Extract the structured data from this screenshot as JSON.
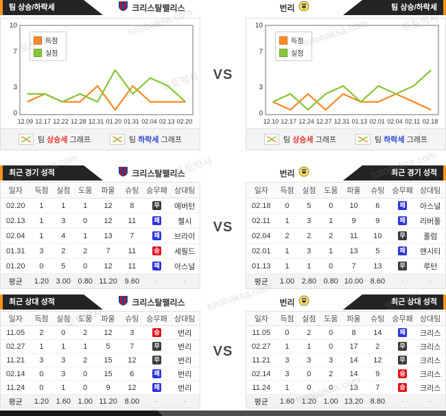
{
  "vs_label": "VS",
  "watermark": {
    "brand": "토토박사",
    "domain": "totobaksa.com"
  },
  "teams": {
    "left": {
      "name": "크리스탈팰리스"
    },
    "right": {
      "name": "번리"
    }
  },
  "result_colors": {
    "승": "#e3131c",
    "무": "#3a3a3a",
    "패": "#2b35d7"
  },
  "table_columns": [
    "일자",
    "득점",
    "실점",
    "도움",
    "파울",
    "슈팅",
    "승무패",
    "상대팀"
  ],
  "column_keys": [
    "date",
    "goals-for",
    "goals-against",
    "assists",
    "fouls",
    "shots",
    "result",
    "opponent"
  ],
  "sections": {
    "trend": {
      "title": "팀 상승/하락세",
      "links": {
        "up": {
          "prefix": "팀",
          "word": "상승세",
          "suffix": "그래프"
        },
        "down": {
          "prefix": "팀",
          "word": "하락세",
          "suffix": "그래프"
        }
      }
    },
    "recent": {
      "title": "최근 경기 성적",
      "left": {
        "rows": [
          [
            "02.20",
            "1",
            "1",
            "1",
            "12",
            "8",
            "무",
            "에버턴"
          ],
          [
            "02.13",
            "1",
            "3",
            "0",
            "12",
            "11",
            "패",
            "첼시"
          ],
          [
            "02.04",
            "1",
            "4",
            "1",
            "13",
            "7",
            "패",
            "브라이"
          ],
          [
            "01.31",
            "3",
            "2",
            "2",
            "7",
            "11",
            "승",
            "세필드"
          ],
          [
            "01.20",
            "0",
            "5",
            "0",
            "12",
            "11",
            "패",
            "아스널"
          ]
        ],
        "avg": [
          "평균",
          "1.20",
          "3.00",
          "0.80",
          "11.20",
          "9.60",
          "·",
          "·"
        ]
      },
      "right": {
        "rows": [
          [
            "02.18",
            "0",
            "5",
            "0",
            "10",
            "6",
            "패",
            "아스널"
          ],
          [
            "02.11",
            "1",
            "3",
            "1",
            "9",
            "9",
            "패",
            "리버풀"
          ],
          [
            "02.04",
            "2",
            "2",
            "2",
            "11",
            "10",
            "무",
            "풀럼"
          ],
          [
            "02.01",
            "1",
            "3",
            "1",
            "13",
            "5",
            "패",
            "맨시티"
          ],
          [
            "01.13",
            "1",
            "1",
            "0",
            "7",
            "13",
            "무",
            "루턴"
          ]
        ],
        "avg": [
          "평균",
          "1.00",
          "2.80",
          "0.80",
          "10.00",
          "8.60",
          "·",
          "·"
        ]
      }
    },
    "h2h": {
      "title": "최근 상대 성적",
      "left": {
        "rows": [
          [
            "11.05",
            "2",
            "0",
            "2",
            "12",
            "3",
            "승",
            "번리"
          ],
          [
            "02.27",
            "1",
            "1",
            "1",
            "5",
            "7",
            "무",
            "번리"
          ],
          [
            "11.21",
            "3",
            "3",
            "2",
            "15",
            "12",
            "무",
            "번리"
          ],
          [
            "02.14",
            "0",
            "3",
            "0",
            "15",
            "6",
            "패",
            "번리"
          ],
          [
            "11.24",
            "0",
            "1",
            "0",
            "9",
            "12",
            "패",
            "번리"
          ]
        ],
        "avg": [
          "평균",
          "1.20",
          "1.60",
          "1.00",
          "11.20",
          "8.00",
          "·",
          "·"
        ]
      },
      "right": {
        "rows": [
          [
            "11.05",
            "0",
            "2",
            "0",
            "8",
            "14",
            "패",
            "크리스"
          ],
          [
            "02.27",
            "1",
            "1",
            "0",
            "17",
            "2",
            "무",
            "크리스"
          ],
          [
            "11.21",
            "3",
            "3",
            "3",
            "14",
            "12",
            "무",
            "크리스"
          ],
          [
            "02.14",
            "3",
            "0",
            "2",
            "14",
            "9",
            "승",
            "크리스"
          ],
          [
            "11.24",
            "1",
            "0",
            "0",
            "13",
            "7",
            "승",
            "크리스"
          ]
        ],
        "avg": [
          "평균",
          "1.60",
          "1.20",
          "1.00",
          "13.20",
          "8.80",
          "·",
          "·"
        ]
      }
    }
  },
  "chart_data": [
    {
      "type": "line",
      "title": "크리스탈팰리스 팀 상승/하락세",
      "x": [
        "12.09",
        "12.17",
        "12.22",
        "12.28",
        "12.31",
        "01.20",
        "01.31",
        "02.04",
        "02.13",
        "02.20"
      ],
      "series": [
        {
          "key": "scored",
          "name": "득점",
          "color": "#ff8b2c",
          "border": "#d96a10",
          "values": [
            1,
            2,
            1,
            1,
            3,
            0,
            3,
            1,
            1,
            1
          ]
        },
        {
          "key": "conceded",
          "name": "실점",
          "color": "#8cc63c",
          "border": "#66a31e",
          "values": [
            2,
            2,
            1,
            2,
            1,
            5,
            2,
            4,
            3,
            1
          ]
        }
      ],
      "ylim": [
        0,
        10
      ],
      "yticks": [
        0,
        3,
        7,
        10
      ],
      "legend_position": "top-left",
      "grid": false
    },
    {
      "type": "line",
      "title": "번리 팀 상승/하락세",
      "x": [
        "12.10",
        "12.17",
        "12.24",
        "12.27",
        "12.31",
        "01.13",
        "02.01",
        "02.04",
        "02.11",
        "02.18"
      ],
      "series": [
        {
          "key": "scored",
          "name": "득점",
          "color": "#ff8b2c",
          "border": "#d96a10",
          "values": [
            1,
            0,
            2,
            0,
            2,
            1,
            1,
            2,
            1,
            0
          ]
        },
        {
          "key": "conceded",
          "name": "실점",
          "color": "#8cc63c",
          "border": "#66a31e",
          "values": [
            1,
            2,
            0,
            2,
            3,
            1,
            3,
            2,
            3,
            5
          ]
        }
      ],
      "ylim": [
        0,
        10
      ],
      "yticks": [
        0,
        3,
        7,
        10
      ],
      "legend_position": "top-left",
      "grid": false
    }
  ]
}
